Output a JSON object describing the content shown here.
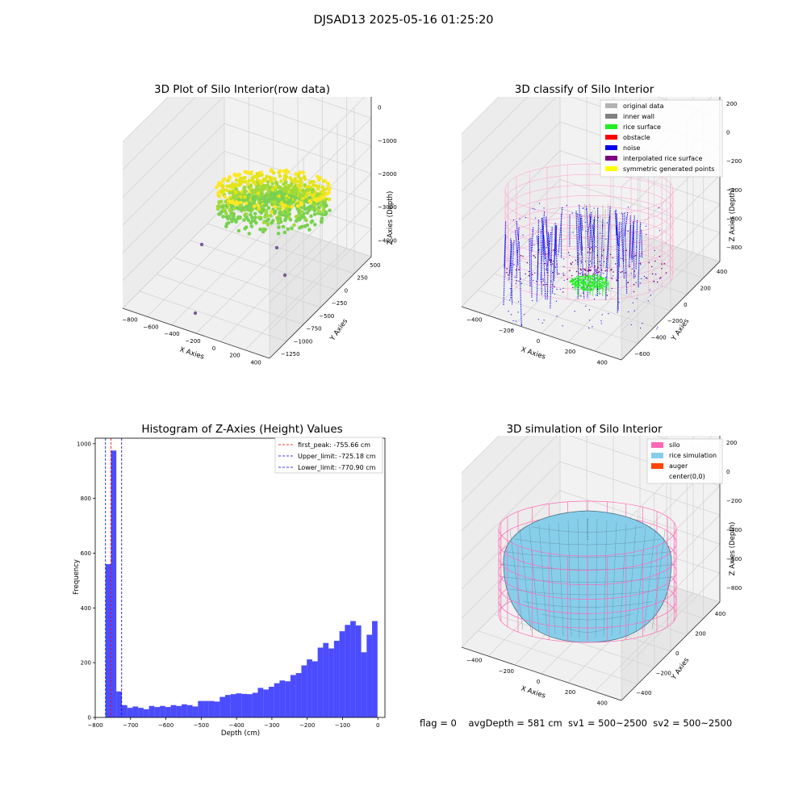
{
  "figure": {
    "suptitle": "DJSAD13 2025-05-16 01:25:20",
    "status": "flag = 0    avgDepth = 581 cm  sv1 = 500~2500  sv2 = 500~2500"
  },
  "colors": {
    "original": "#b3b3b3",
    "inner_wall": "#808080",
    "rice_surface": "#22ee22",
    "obstacle": "#ff0000",
    "noise": "#0000ee",
    "interpolated": "#800080",
    "symmetric": "#ffff00",
    "silo": "#ff69b4",
    "rice_sim": "#87ceeb",
    "auger": "#ff4500",
    "hist_bar": "#0000ff",
    "peak_line": "#ff0000",
    "limit_line": "#0000cc"
  },
  "chart_data": [
    {
      "type": "scatter",
      "projection": "3d",
      "title": "3D Plot of Silo Interior(row data)",
      "xlabel": "X Axies",
      "ylabel": "Y Axies",
      "zlabel": "Z Axies (Depth)",
      "xticks": [
        "−800",
        "−600",
        "−400",
        "−200",
        "0",
        "200",
        "400"
      ],
      "yticks": [
        "500",
        "250",
        "0",
        "−250",
        "−500",
        "−750",
        "−1000",
        "−1250"
      ],
      "zticks": [
        "0",
        "−1000",
        "−2000",
        "−3000",
        "−4000"
      ],
      "xlim": [
        -850,
        420
      ],
      "ylim": [
        -1300,
        600
      ],
      "zlim": [
        -4400,
        200
      ],
      "grid": true,
      "colormap": "viridis by depth",
      "outliers": [
        {
          "x": -560,
          "y": 200,
          "z": -4300
        },
        {
          "x": -150,
          "y": -300,
          "z": -3900
        },
        {
          "x": 250,
          "y": -400,
          "z": -3700
        },
        {
          "x": -700,
          "y": -1100,
          "z": -4000
        }
      ]
    },
    {
      "type": "scatter",
      "projection": "3d",
      "title": "3D classify of Silo Interior",
      "xlabel": "X Axies",
      "ylabel": "Y Axies",
      "zlabel": "Z Axies (Depth)",
      "xticks": [
        "−400",
        "−200",
        "0",
        "200",
        "400"
      ],
      "yticks": [
        "400",
        "200",
        "0",
        "−200",
        "−400",
        "−600"
      ],
      "zticks": [
        "200",
        "0",
        "−200",
        "−400",
        "−600",
        "−800"
      ],
      "grid": true,
      "legend": {
        "position": "top-right",
        "entries": [
          "original data",
          "inner wall",
          "rice surface",
          "obstacle",
          "noise",
          "interpolated rice surface",
          "symmetric generated points"
        ]
      }
    },
    {
      "type": "bar",
      "title": "Histogram of Z-Axies (Height) Values",
      "xlabel": "Depth (cm)",
      "ylabel": "Frequency",
      "xlim": [
        -800,
        20
      ],
      "ylim": [
        0,
        1020
      ],
      "xticks": [
        -800,
        -700,
        -600,
        -500,
        -400,
        -300,
        -200,
        -100,
        0
      ],
      "yticks": [
        0,
        200,
        400,
        600,
        800,
        1000
      ],
      "bin_start": -771,
      "bin_width": 15.4,
      "values": [
        560,
        975,
        95,
        45,
        35,
        40,
        35,
        30,
        42,
        38,
        42,
        38,
        45,
        42,
        48,
        45,
        40,
        60,
        60,
        60,
        58,
        75,
        82,
        85,
        88,
        86,
        85,
        90,
        108,
        102,
        112,
        125,
        135,
        132,
        155,
        162,
        190,
        212,
        205,
        255,
        272,
        252,
        280,
        315,
        338,
        352,
        336,
        238,
        302,
        352
      ],
      "vlines": [
        {
          "label": "first_peak: -755.66 cm",
          "x": -755.66,
          "color": "red"
        },
        {
          "label": "Upper_limit: -725.18 cm",
          "x": -725.18,
          "color": "blue"
        },
        {
          "label": "Lower_limit: -770.90 cm",
          "x": -770.9,
          "color": "blue"
        }
      ],
      "legend": {
        "position": "top-right"
      }
    },
    {
      "type": "surface",
      "projection": "3d",
      "title": "3D simulation of Silo Interior",
      "xlabel": "X Axies",
      "ylabel": "Y Axies",
      "zlabel": "Z Axies (Depth)",
      "xticks": [
        "−400",
        "−200",
        "0",
        "200",
        "400"
      ],
      "yticks": [
        "400",
        "200",
        "0",
        "−200",
        "−400"
      ],
      "zticks": [
        "200",
        "0",
        "−200",
        "−400",
        "−600",
        "−800"
      ],
      "grid": true,
      "legend": {
        "position": "top-right",
        "entries": [
          "silo",
          "rice simulation",
          "auger",
          "center(0,0)"
        ]
      }
    }
  ]
}
